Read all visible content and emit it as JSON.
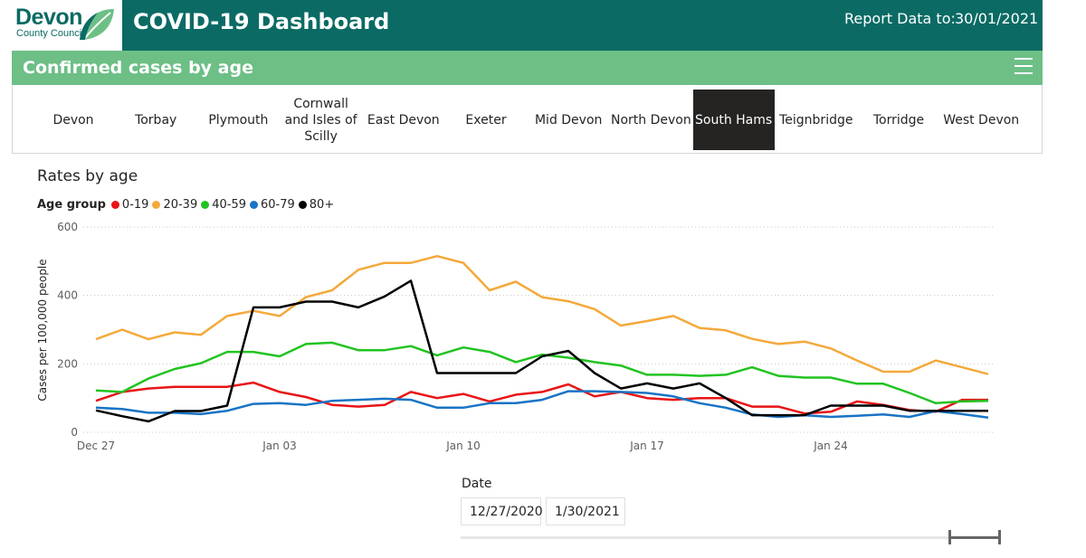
{
  "header": {
    "logo_name": "Devon",
    "logo_subtitle": "County Council",
    "title": "COVID-19 Dashboard",
    "report_label": "Report Data to:",
    "report_date": "30/01/2021"
  },
  "section": {
    "title": "Confirmed cases by age"
  },
  "areas": [
    {
      "label": "Devon",
      "selected": false
    },
    {
      "label": "Torbay",
      "selected": false
    },
    {
      "label": "Plymouth",
      "selected": false
    },
    {
      "label": "Cornwall and Isles of Scilly",
      "selected": false
    },
    {
      "label": "East Devon",
      "selected": false
    },
    {
      "label": "Exeter",
      "selected": false
    },
    {
      "label": "Mid Devon",
      "selected": false
    },
    {
      "label": "North Devon",
      "selected": false
    },
    {
      "label": "South Hams",
      "selected": true
    },
    {
      "label": "Teignbridge",
      "selected": false
    },
    {
      "label": "Torridge",
      "selected": false
    },
    {
      "label": "West Devon",
      "selected": false
    }
  ],
  "date_slicer": {
    "title": "Date",
    "start": "12/27/2020",
    "end": "1/30/2021"
  },
  "chart_data": {
    "type": "line",
    "title": "Rates by age",
    "legend_title": "Age group",
    "ylabel": "Cases per 100,000 people",
    "xlabel": "",
    "ylim": [
      0,
      600
    ],
    "yticks": [
      0,
      200,
      400,
      600
    ],
    "x_start": "Dec 27",
    "xticks": [
      "Dec 27",
      "Jan 03",
      "Jan 10",
      "Jan 17",
      "Jan 24"
    ],
    "x": [
      "Dec 27",
      "Dec 28",
      "Dec 29",
      "Dec 30",
      "Dec 31",
      "Jan 01",
      "Jan 02",
      "Jan 03",
      "Jan 04",
      "Jan 05",
      "Jan 06",
      "Jan 07",
      "Jan 08",
      "Jan 09",
      "Jan 10",
      "Jan 11",
      "Jan 12",
      "Jan 13",
      "Jan 14",
      "Jan 15",
      "Jan 16",
      "Jan 17",
      "Jan 18",
      "Jan 19",
      "Jan 20",
      "Jan 21",
      "Jan 22",
      "Jan 23",
      "Jan 24",
      "Jan 25",
      "Jan 26",
      "Jan 27",
      "Jan 28",
      "Jan 29",
      "Jan 30"
    ],
    "grid": true,
    "series": [
      {
        "name": "0-19",
        "color": "#e81416",
        "values": [
          92,
          118,
          128,
          133,
          133,
          133,
          145,
          118,
          103,
          80,
          75,
          80,
          118,
          100,
          112,
          90,
          110,
          118,
          140,
          105,
          118,
          100,
          95,
          100,
          100,
          75,
          75,
          55,
          60,
          90,
          80,
          65,
          60,
          95,
          95
        ]
      },
      {
        "name": "20-39",
        "color": "#f4a93b",
        "values": [
          272,
          300,
          272,
          292,
          285,
          340,
          355,
          340,
          395,
          415,
          475,
          495,
          495,
          515,
          495,
          415,
          440,
          395,
          383,
          360,
          312,
          325,
          340,
          305,
          298,
          273,
          258,
          265,
          245,
          210,
          177,
          177,
          210,
          190,
          170
        ]
      },
      {
        "name": "40-59",
        "color": "#22c321",
        "values": [
          122,
          118,
          157,
          185,
          202,
          235,
          235,
          222,
          258,
          262,
          240,
          240,
          252,
          225,
          248,
          235,
          205,
          227,
          218,
          205,
          195,
          168,
          168,
          165,
          168,
          190,
          165,
          160,
          160,
          142,
          142,
          115,
          85,
          90,
          92
        ]
      },
      {
        "name": "60-79",
        "color": "#1874c4",
        "values": [
          72,
          68,
          57,
          57,
          53,
          63,
          83,
          85,
          80,
          92,
          95,
          98,
          95,
          72,
          72,
          85,
          85,
          95,
          120,
          120,
          118,
          115,
          105,
          85,
          72,
          52,
          45,
          50,
          45,
          48,
          52,
          45,
          62,
          53,
          43
        ]
      },
      {
        "name": "80+",
        "color": "#000000",
        "values": [
          64,
          47,
          32,
          62,
          62,
          78,
          365,
          365,
          382,
          382,
          365,
          397,
          443,
          173,
          173,
          173,
          173,
          222,
          238,
          173,
          128,
          143,
          128,
          143,
          100,
          50,
          50,
          50,
          78,
          78,
          78,
          63,
          63,
          63,
          63
        ]
      }
    ]
  }
}
